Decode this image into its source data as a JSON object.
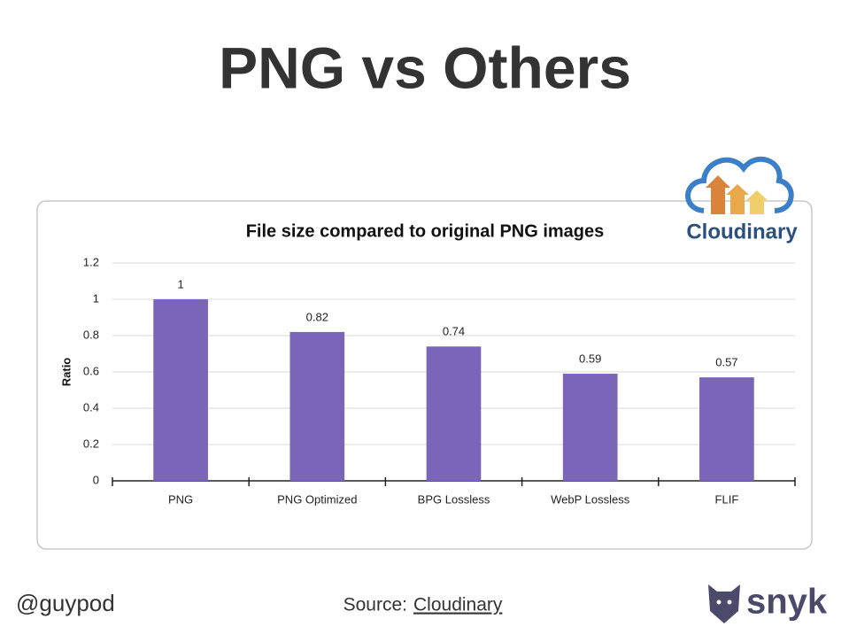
{
  "slide_title": "PNG vs Others",
  "chart_data": {
    "type": "bar",
    "title": "File size compared to original PNG images",
    "y_label": "Ratio",
    "categories": [
      "PNG",
      "PNG Optimized",
      "BPG Lossless",
      "WebP Lossless",
      "FLIF"
    ],
    "values": [
      1,
      0.82,
      0.74,
      0.59,
      0.57
    ],
    "color": "#7b65b8",
    "ylim": [
      0,
      1.2
    ],
    "yticks": [
      0,
      0.2,
      0.4,
      0.6,
      0.8,
      1,
      1.2
    ],
    "grid": true
  },
  "logos": {
    "cloudinary": "Cloudinary",
    "snyk": "snyk"
  },
  "footer": {
    "handle": "@guypod",
    "source_label": "Source:",
    "source_link": "Cloudinary"
  }
}
